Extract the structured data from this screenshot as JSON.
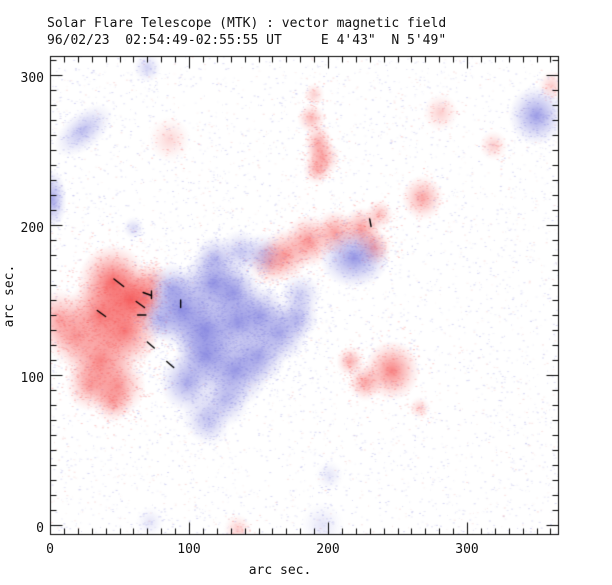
{
  "header": {
    "title": "Solar Flare Telescope (MTK) : vector magnetic field",
    "subtitle": "96/02/23  02:54:49-02:55:55 UT     E 4'43\"  N 5'49\""
  },
  "observation": {
    "instrument": "Solar Flare Telescope (MTK)",
    "quantity": "vector magnetic field",
    "date": "96/02/23",
    "time_range": "02:54:49-02:55:55 UT",
    "position": "E 4'43\"  N 5'49\""
  },
  "chart_data": {
    "type": "heatmap",
    "title": "Solar Flare Telescope (MTK) : vector magnetic field",
    "subtitle": "96/02/23  02:54:49-02:55:55 UT     E 4'43\"  N 5'49\"",
    "xlabel": "arc sec.",
    "ylabel": "arc sec.",
    "xlim": [
      0,
      365
    ],
    "ylim": [
      -6,
      313
    ],
    "xticks": [
      0,
      100,
      200,
      300
    ],
    "yticks": [
      0,
      100,
      200,
      300
    ],
    "minor_tick_step": 10,
    "grid": false,
    "legend_position": "none",
    "colors": {
      "positive_polarity": "#f65a5a",
      "negative_polarity": "#7d7dde",
      "noise_blue": "#a0a0e4",
      "noise_red": "#eea0a0",
      "vector_marks": "#000000",
      "axis": "#000000",
      "background": "#ffffff"
    },
    "positive_features": [
      {
        "x": 45,
        "y": 162,
        "sx": 10,
        "sy": 10,
        "i": 0.9
      },
      {
        "x": 58,
        "y": 150,
        "sx": 9,
        "sy": 9,
        "i": 0.95
      },
      {
        "x": 36,
        "y": 140,
        "sx": 10,
        "sy": 10,
        "i": 0.85
      },
      {
        "x": 54,
        "y": 129,
        "sx": 10,
        "sy": 10,
        "i": 0.8
      },
      {
        "x": 7,
        "y": 137,
        "sx": 8,
        "sy": 8,
        "i": 0.55
      },
      {
        "x": 18,
        "y": 125,
        "sx": 8,
        "sy": 8,
        "i": 0.6
      },
      {
        "x": 36,
        "y": 110,
        "sx": 10,
        "sy": 10,
        "i": 0.75
      },
      {
        "x": 49,
        "y": 93,
        "sx": 8,
        "sy": 8,
        "i": 0.6
      },
      {
        "x": 45,
        "y": 83,
        "sx": 6,
        "sy": 6,
        "i": 0.5
      },
      {
        "x": 29,
        "y": 93,
        "sx": 7,
        "sy": 7,
        "i": 0.55
      },
      {
        "x": 68,
        "y": 151,
        "sx": 6,
        "sy": 6,
        "i": 0.7
      },
      {
        "x": 73,
        "y": 163,
        "sx": 5,
        "sy": 5,
        "i": 0.45
      },
      {
        "x": 169,
        "y": 180,
        "sx": 7,
        "sy": 7,
        "i": 0.6
      },
      {
        "x": 186,
        "y": 189,
        "sx": 7,
        "sy": 7,
        "i": 0.65
      },
      {
        "x": 205,
        "y": 195,
        "sx": 6,
        "sy": 6,
        "i": 0.6
      },
      {
        "x": 224,
        "y": 197,
        "sx": 6,
        "sy": 6,
        "i": 0.6
      },
      {
        "x": 233,
        "y": 185,
        "sx": 5,
        "sy": 5,
        "i": 0.55
      },
      {
        "x": 158,
        "y": 175,
        "sx": 6,
        "sy": 6,
        "i": 0.45
      },
      {
        "x": 188,
        "y": 271,
        "sx": 4,
        "sy": 4,
        "i": 0.45
      },
      {
        "x": 193,
        "y": 255,
        "sx": 4,
        "sy": 5,
        "i": 0.5
      },
      {
        "x": 196,
        "y": 245,
        "sx": 5,
        "sy": 5,
        "i": 0.55
      },
      {
        "x": 192,
        "y": 237,
        "sx": 4,
        "sy": 4,
        "i": 0.45
      },
      {
        "x": 190,
        "y": 287,
        "sx": 3,
        "sy": 3,
        "i": 0.3
      },
      {
        "x": 86,
        "y": 257,
        "sx": 6,
        "sy": 6,
        "i": 0.25
      },
      {
        "x": 281,
        "y": 275,
        "sx": 5,
        "sy": 5,
        "i": 0.3
      },
      {
        "x": 268,
        "y": 218,
        "sx": 6,
        "sy": 6,
        "i": 0.55
      },
      {
        "x": 319,
        "y": 253,
        "sx": 4,
        "sy": 4,
        "i": 0.3
      },
      {
        "x": 246,
        "y": 103,
        "sx": 8,
        "sy": 8,
        "i": 0.75
      },
      {
        "x": 216,
        "y": 109,
        "sx": 4,
        "sy": 4,
        "i": 0.5
      },
      {
        "x": 227,
        "y": 95,
        "sx": 5,
        "sy": 5,
        "i": 0.55
      },
      {
        "x": 266,
        "y": 78,
        "sx": 3,
        "sy": 3,
        "i": 0.3
      },
      {
        "x": 237,
        "y": 207,
        "sx": 4,
        "sy": 4,
        "i": 0.4
      },
      {
        "x": 135,
        "y": -3,
        "sx": 4,
        "sy": 4,
        "i": 0.3
      },
      {
        "x": 361,
        "y": 293,
        "sx": 4,
        "sy": 4,
        "i": 0.3
      }
    ],
    "negative_features": [
      {
        "x": 24,
        "y": 263,
        "sx": 10,
        "sy": 5,
        "rot": -40,
        "i": 0.5
      },
      {
        "x": 2,
        "y": 217,
        "sx": 4,
        "sy": 8,
        "i": 0.65
      },
      {
        "x": 60,
        "y": 198,
        "sx": 3,
        "sy": 3,
        "i": 0.3
      },
      {
        "x": 70,
        "y": 305,
        "sx": 4,
        "sy": 4,
        "i": 0.35
      },
      {
        "x": 350,
        "y": 273,
        "sx": 8,
        "sy": 8,
        "i": 0.75
      },
      {
        "x": 219,
        "y": 178,
        "sx": 10,
        "sy": 8,
        "i": 0.8
      },
      {
        "x": 153,
        "y": 180,
        "sx": 6,
        "sy": 6,
        "i": 0.4
      },
      {
        "x": 117,
        "y": 161,
        "sx": 9,
        "sy": 9,
        "i": 0.8
      },
      {
        "x": 132,
        "y": 155,
        "sx": 8,
        "sy": 8,
        "i": 0.75
      },
      {
        "x": 95,
        "y": 143,
        "sx": 10,
        "sy": 10,
        "i": 0.85
      },
      {
        "x": 112,
        "y": 130,
        "sx": 10,
        "sy": 10,
        "i": 0.85
      },
      {
        "x": 135,
        "y": 135,
        "sx": 9,
        "sy": 9,
        "i": 0.8
      },
      {
        "x": 151,
        "y": 140,
        "sx": 8,
        "sy": 8,
        "i": 0.7
      },
      {
        "x": 165,
        "y": 128,
        "sx": 8,
        "sy": 8,
        "i": 0.7
      },
      {
        "x": 178,
        "y": 138,
        "sx": 6,
        "sy": 6,
        "i": 0.55
      },
      {
        "x": 112,
        "y": 113,
        "sx": 9,
        "sy": 9,
        "i": 0.8
      },
      {
        "x": 133,
        "y": 103,
        "sx": 10,
        "sy": 10,
        "i": 0.8
      },
      {
        "x": 99,
        "y": 95,
        "sx": 8,
        "sy": 8,
        "i": 0.65
      },
      {
        "x": 150,
        "y": 113,
        "sx": 8,
        "sy": 8,
        "i": 0.7
      },
      {
        "x": 126,
        "y": 83,
        "sx": 7,
        "sy": 7,
        "i": 0.5
      },
      {
        "x": 119,
        "y": 178,
        "sx": 6,
        "sy": 6,
        "i": 0.5
      },
      {
        "x": 137,
        "y": 182,
        "sx": 6,
        "sy": 6,
        "i": 0.45
      },
      {
        "x": 88,
        "y": 157,
        "sx": 7,
        "sy": 7,
        "i": 0.6
      },
      {
        "x": 79,
        "y": 137,
        "sx": 6,
        "sy": 6,
        "i": 0.5
      },
      {
        "x": 112,
        "y": 73,
        "sx": 7,
        "sy": 7,
        "i": 0.35
      },
      {
        "x": 180,
        "y": 153,
        "sx": 6,
        "sy": 6,
        "i": 0.4
      },
      {
        "x": 115,
        "y": 67,
        "sx": 6,
        "sy": 6,
        "i": 0.25
      },
      {
        "x": 196,
        "y": 0,
        "sx": 6,
        "sy": 6,
        "i": 0.2
      },
      {
        "x": 72,
        "y": 2,
        "sx": 4,
        "sy": 4,
        "i": 0.2
      },
      {
        "x": 201,
        "y": 33,
        "sx": 4,
        "sy": 4,
        "i": 0.2
      }
    ],
    "vector_segments_arcsec": [
      [
        46,
        164,
        53,
        159
      ],
      [
        67,
        155,
        73,
        153
      ],
      [
        62,
        149,
        68,
        145
      ],
      [
        34,
        143,
        40,
        139
      ],
      [
        63,
        140,
        69,
        140
      ],
      [
        73,
        156,
        73,
        151
      ],
      [
        94,
        150,
        94,
        145
      ],
      [
        70,
        122,
        75,
        118
      ],
      [
        84,
        109,
        89,
        105
      ],
      [
        230,
        204,
        231,
        199
      ]
    ]
  }
}
